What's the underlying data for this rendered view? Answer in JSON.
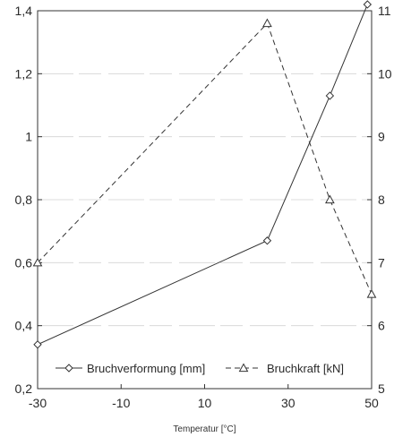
{
  "chart_data": {
    "type": "line",
    "title": "",
    "xlabel": "Temperatur [°C]",
    "ylabel": "",
    "y2label": "",
    "xlim": [
      -30,
      50
    ],
    "ylim": [
      0.2,
      1.4
    ],
    "y2lim": [
      5,
      11
    ],
    "xticks": [
      "-30",
      "-10",
      "10",
      "30",
      "50"
    ],
    "xtick_values": [
      -30,
      -10,
      10,
      30,
      50
    ],
    "yticks": [
      "0,2",
      "0,4",
      "0,6",
      "0,8",
      "1",
      "1,2",
      "1,4"
    ],
    "ytick_values": [
      0.2,
      0.4,
      0.6,
      0.8,
      1.0,
      1.2,
      1.4
    ],
    "y2ticks": [
      "5",
      "6",
      "7",
      "8",
      "9",
      "10",
      "11"
    ],
    "y2tick_values": [
      5,
      6,
      7,
      8,
      9,
      10,
      11
    ],
    "grid": "horizontal",
    "legend_position": "lower-center",
    "series": [
      {
        "name": "Bruchverformung [mm]",
        "axis": "left",
        "marker": "diamond",
        "line_style": "solid",
        "x": [
          -30,
          25,
          40,
          49
        ],
        "y": [
          0.34,
          0.67,
          1.13,
          1.42
        ]
      },
      {
        "name": "Bruchkraft [kN]",
        "axis": "right",
        "marker": "triangle",
        "line_style": "dashed",
        "x": [
          -30,
          25,
          40,
          50
        ],
        "y": [
          7.0,
          10.8,
          8.0,
          6.5
        ]
      }
    ]
  }
}
